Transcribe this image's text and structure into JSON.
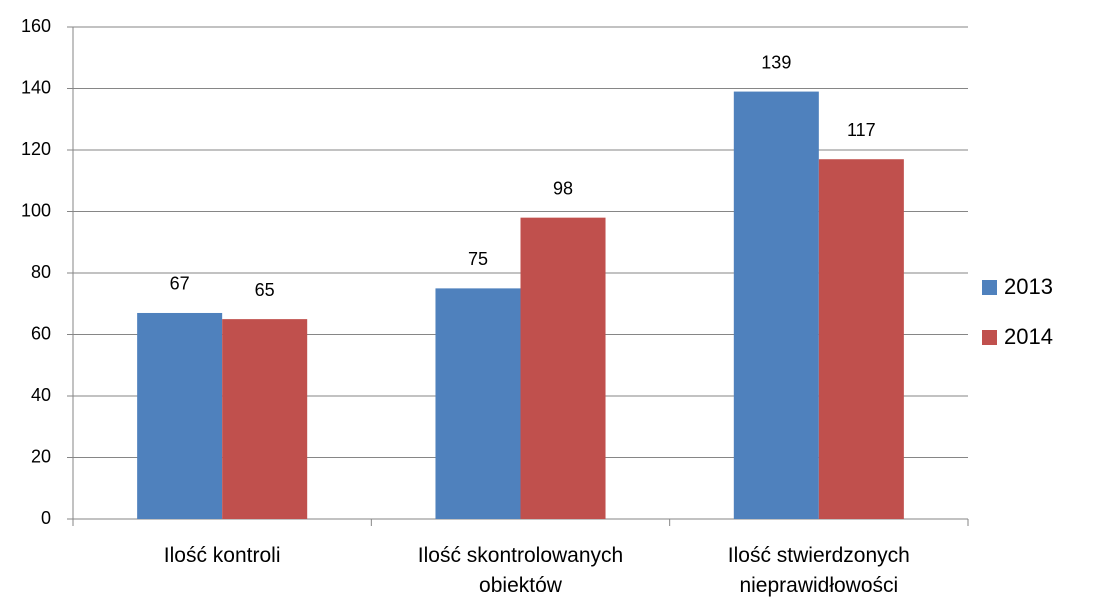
{
  "chart_data": {
    "type": "bar",
    "categories": [
      "Ilość kontroli",
      "Ilość skontrolowanych obiektów",
      "Ilość stwierdzonych nieprawidłowości"
    ],
    "series": [
      {
        "name": "2013",
        "color": "#4f81bd",
        "values": [
          67,
          75,
          139
        ]
      },
      {
        "name": "2014",
        "color": "#c0504d",
        "values": [
          65,
          98,
          117
        ]
      }
    ],
    "ylim": [
      0,
      160
    ],
    "yticks": [
      0,
      20,
      40,
      60,
      80,
      100,
      120,
      140,
      160
    ],
    "grid": true,
    "legend": "right"
  }
}
